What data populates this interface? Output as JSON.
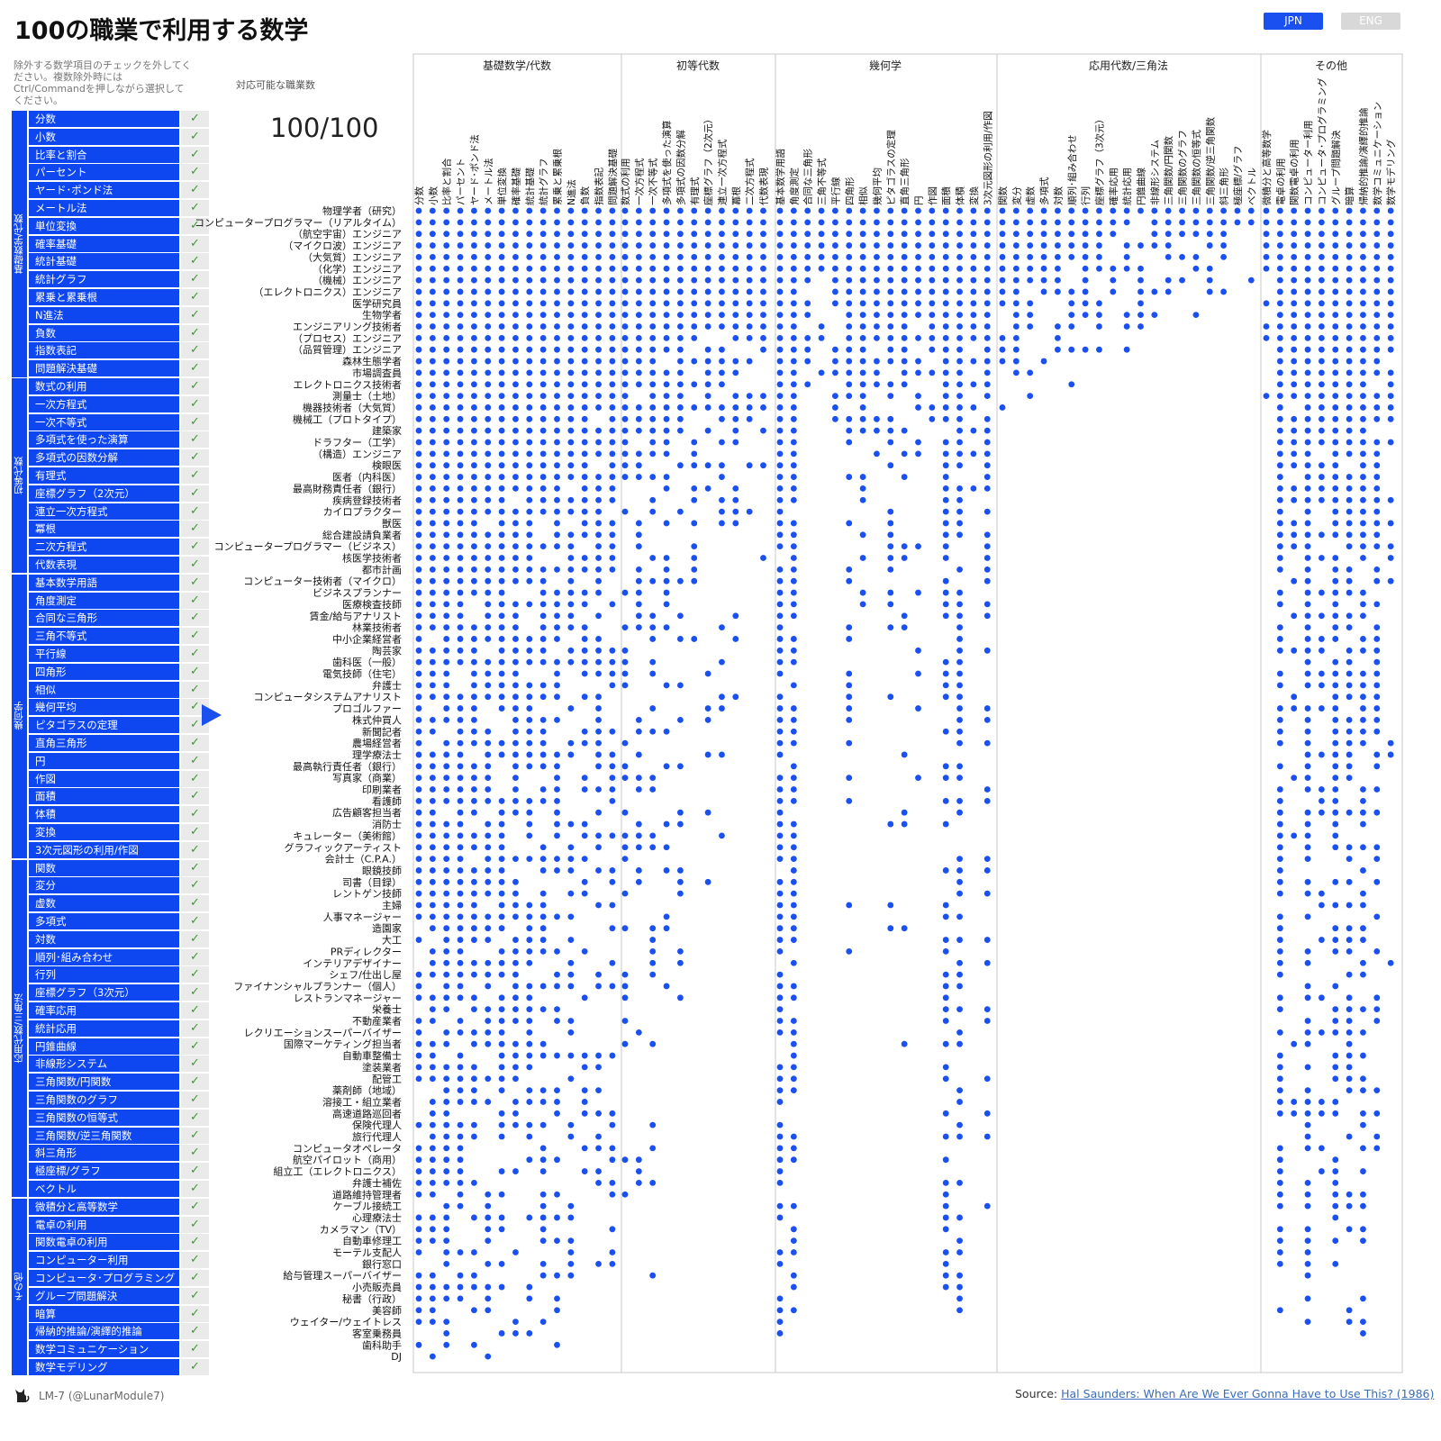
{
  "title": "100の職業で利用する数学",
  "lang": {
    "jpn": "JPN",
    "eng": "ENG"
  },
  "instructions": "除外する数学項目のチェックを外してください。複数除外時にはCtrl/Commandを押しながら選択してください。",
  "count_label": "対応可能な職業数",
  "count_value": "100/100",
  "check": "✓",
  "groups": [
    {
      "name": "基礎数学/代数",
      "items": [
        "分数",
        "小数",
        "比率と割合",
        "パーセント",
        "ヤード･ポンド法",
        "メートル法",
        "単位変換",
        "確率基礎",
        "統計基礎",
        "統計グラフ",
        "累乗と累乗根",
        "N進法",
        "負数",
        "指数表記",
        "問題解決基礎"
      ]
    },
    {
      "name": "初等代数",
      "items": [
        "数式の利用",
        "一次方程式",
        "一次不等式",
        "多項式を使った演算",
        "多項式の因数分解",
        "有理式",
        "座標グラフ（2次元）",
        "連立一次方程式",
        "冪根",
        "二次方程式",
        "代数表現"
      ]
    },
    {
      "name": "幾何学",
      "items": [
        "基本数学用語",
        "角度測定",
        "合同な三角形",
        "三角不等式",
        "平行線",
        "四角形",
        "相似",
        "幾何平均",
        "ピタゴラスの定理",
        "直角三角形",
        "円",
        "作図",
        "面積",
        "体積",
        "変換",
        "3次元図形の利用/作図"
      ]
    },
    {
      "name": "応用代数/三角法",
      "items": [
        "関数",
        "変分",
        "虚数",
        "多項式",
        "対数",
        "順列･組み合わせ",
        "行列",
        "座標グラフ（3次元）",
        "確率応用",
        "統計応用",
        "円錐曲線",
        "非線形システム",
        "三角関数/円関数",
        "三角関数のグラフ",
        "三角関数の恒等式",
        "三角関数/逆三角関数",
        "斜三角形",
        "極座標/グラフ",
        "ベクトル"
      ]
    },
    {
      "name": "その他",
      "items": [
        "微積分と高等数学",
        "電卓の利用",
        "関数電卓の利用",
        "コンピューター利用",
        "コンピュータ･プログラミング",
        "グループ問題解決",
        "暗算",
        "帰納的推論/演繹的推論",
        "数学コミュニケーション",
        "数学モデリング"
      ]
    }
  ],
  "jobs": [
    "物理学者（研究）",
    "コンピュータープログラマー（リアルタイム）",
    "（航空宇宙）エンジニア",
    "（マイクロ波）エンジニア",
    "（大気質）エンジニア",
    "（化学）エンジニア",
    "（機械）エンジニア",
    "（エレクトロニクス）エンジニア",
    "医学研究員",
    "生物学者",
    "エンジニアリング技術者",
    "（プロセス）エンジニア",
    "（品質管理）エンジニア",
    "森林生態学者",
    "市場調査員",
    "エレクトロニクス技術者",
    "測量士（土地）",
    "機器技術者（大気質）",
    "機械工（プロトタイプ）",
    "建築家",
    "ドラフター（工学）",
    "（構造）エンジニア",
    "検眼医",
    "医者（内科医）",
    "最高財務責任者（銀行）",
    "疾病登録技術者",
    "カイロプラクター",
    "獣医",
    "総合建設請負業者",
    "コンピュータープログラマー（ビジネス）",
    "核医学技術者",
    "都市計画",
    "コンピューター技術者（マイクロ）",
    "ビジネスプランナー",
    "医療検査技師",
    "賃金/給与アナリスト",
    "林業技術者",
    "中小企業経営者",
    "陶芸家",
    "歯科医（一般）",
    "電気技師（住宅）",
    "弁護士",
    "コンピュータシステムアナリスト",
    "プロゴルファー",
    "株式仲買人",
    "新聞記者",
    "農場経営者",
    "理学療法士",
    "最高執行責任者（銀行）",
    "写真家（商業）",
    "印刷業者",
    "看護師",
    "広告顧客担当者",
    "消防士",
    "キュレーター（美術館）",
    "グラフィックアーティスト",
    "会計士（C.P.A.）",
    "眼鏡技師",
    "司書（目録）",
    "レントゲン技師",
    "主婦",
    "人事マネージャー",
    "造園家",
    "大工",
    "PRディレクター",
    "インテリアデザイナー",
    "シェフ/仕出し屋",
    "ファイナンシャルプランナー（個人）",
    "レストランマネージャー",
    "栄養士",
    "不動産業者",
    "レクリエーションスーパーバイザー",
    "国際マーケティング担当者",
    "自動車整備士",
    "塗装業者",
    "配管工",
    "薬剤師（地域）",
    "溶接工・組立業者",
    "高速道路巡回者",
    "保険代理人",
    "旅行代理人",
    "コンピュータオペレータ",
    "航空パイロット（商用）",
    "組立工（エレクトロニクス）",
    "弁護士補佐",
    "道路維持管理者",
    "ケーブル接続工",
    "心理療法士",
    "カメラマン（TV）",
    "自動車修理工",
    "モーテル支配人",
    "銀行窓口",
    "給与管理スーパーバイザー",
    "小売販売員",
    "秘書（行政）",
    "美容師",
    "ウェイター/ウェイトレス",
    "客室乗務員",
    "歯科助手",
    "DJ"
  ],
  "colors": {
    "accent": "#0e46f0",
    "dot": "#1a4ff0",
    "check": "#3c9a2f"
  },
  "footer": {
    "author": "LM-7 (@LunarModule7)",
    "source_label": "Source: ",
    "source_link": "Hal Saunders: When Are We Ever Gonna Have to Use This? (1986)"
  },
  "icons": {
    "author_icon": "cat-icon",
    "arrow": "triangle-right-icon"
  }
}
